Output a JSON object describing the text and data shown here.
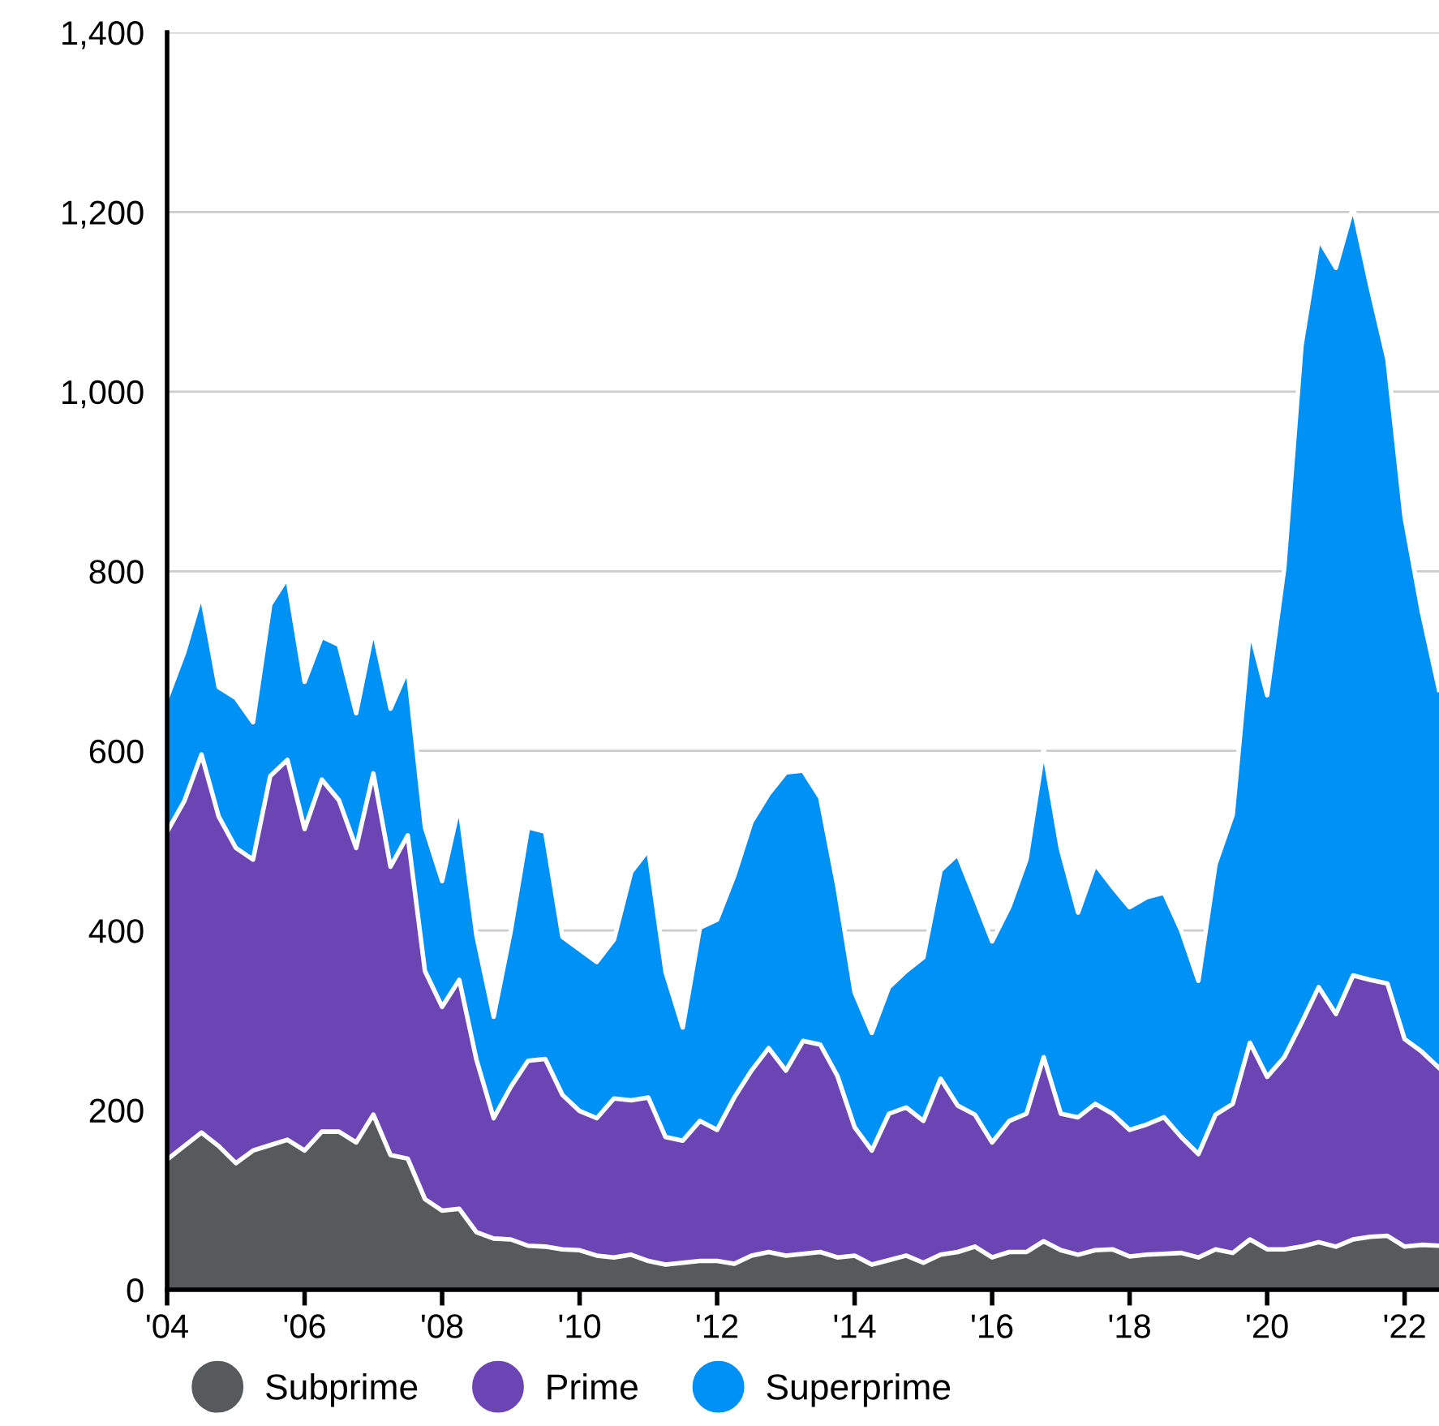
{
  "chart_data": {
    "type": "area",
    "stacked": true,
    "x": [
      2004,
      2004.25,
      2004.5,
      2004.75,
      2005,
      2005.25,
      2005.5,
      2005.75,
      2006,
      2006.25,
      2006.5,
      2006.75,
      2007,
      2007.25,
      2007.5,
      2007.75,
      2008,
      2008.25,
      2008.5,
      2008.75,
      2009,
      2009.25,
      2009.5,
      2009.75,
      2010,
      2010.25,
      2010.5,
      2010.75,
      2011,
      2011.25,
      2011.5,
      2011.75,
      2012,
      2012.25,
      2012.5,
      2012.75,
      2013,
      2013.25,
      2013.5,
      2013.75,
      2014,
      2014.25,
      2014.5,
      2014.75,
      2015,
      2015.25,
      2015.5,
      2015.75,
      2016,
      2016.25,
      2016.5,
      2016.75,
      2017,
      2017.25,
      2017.5,
      2017.75,
      2018,
      2018.25,
      2018.5,
      2018.75,
      2019,
      2019.25,
      2019.5,
      2019.75,
      2020,
      2020.25,
      2020.5,
      2020.75,
      2021,
      2021.25,
      2021.5,
      2021.75,
      2022,
      2022.25,
      2022.5
    ],
    "series": [
      {
        "name": "Subprime",
        "color": "#575a5c",
        "values": [
          145,
          160,
          175,
          160,
          141,
          155,
          161,
          167,
          155,
          176,
          176,
          164,
          195,
          150,
          146,
          101,
          88,
          90,
          64,
          57,
          56,
          49,
          48,
          45,
          44,
          38,
          36,
          39,
          32,
          28,
          30,
          32,
          32,
          29,
          38,
          42,
          38,
          40,
          42,
          36,
          38,
          28,
          33,
          38,
          30,
          39,
          42,
          48,
          36,
          42,
          42,
          54,
          44,
          39,
          44,
          45,
          37,
          39,
          40,
          41,
          36,
          45,
          41,
          56,
          45,
          45,
          48,
          53,
          48,
          56,
          59,
          60,
          48,
          50,
          49
        ]
      },
      {
        "name": "Prime",
        "color": "#6c45b5",
        "values": [
          365,
          384,
          421,
          367,
          351,
          324,
          411,
          423,
          358,
          392,
          369,
          328,
          380,
          321,
          360,
          254,
          227,
          255,
          192,
          134,
          170,
          206,
          209,
          172,
          155,
          153,
          177,
          172,
          182,
          142,
          136,
          156,
          146,
          185,
          206,
          227,
          206,
          237,
          231,
          202,
          143,
          127,
          163,
          165,
          158,
          196,
          163,
          147,
          128,
          146,
          154,
          205,
          152,
          153,
          163,
          151,
          141,
          145,
          152,
          129,
          115,
          150,
          166,
          219,
          192,
          214,
          249,
          284,
          259,
          294,
          286,
          281,
          231,
          215,
          198
        ]
      },
      {
        "name": "Superprime",
        "color": "#0091f7",
        "values": [
          149,
          166,
          179,
          144,
          167,
          153,
          191,
          203,
          164,
          159,
          173,
          150,
          161,
          176,
          185,
          160,
          140,
          195,
          138,
          113,
          174,
          260,
          253,
          176,
          180,
          174,
          177,
          254,
          276,
          184,
          126,
          215,
          234,
          247,
          277,
          283,
          332,
          301,
          275,
          211,
          150,
          131,
          141,
          152,
          182,
          232,
          280,
          242,
          224,
          238,
          283,
          343,
          295,
          228,
          267,
          253,
          248,
          253,
          250,
          230,
          193,
          279,
          322,
          460,
          425,
          545,
          754,
          833,
          831,
          856,
          773,
          695,
          581,
          490,
          421
        ]
      }
    ],
    "xlim": [
      2004,
      2022.5
    ],
    "xticks": [
      {
        "value": 2004,
        "label": "'04"
      },
      {
        "value": 2006,
        "label": "'06"
      },
      {
        "value": 2008,
        "label": "'08"
      },
      {
        "value": 2010,
        "label": "'10"
      },
      {
        "value": 2012,
        "label": "'12"
      },
      {
        "value": 2014,
        "label": "'14"
      },
      {
        "value": 2016,
        "label": "'16"
      },
      {
        "value": 2018,
        "label": "'18"
      },
      {
        "value": 2020,
        "label": "'20"
      },
      {
        "value": 2022,
        "label": "'22"
      }
    ],
    "ylim": [
      0,
      1400
    ],
    "yticks": [
      0,
      200,
      400,
      600,
      800,
      {
        "value": 1000,
        "label": "1,000"
      },
      {
        "value": 1200,
        "label": "1,200"
      },
      {
        "value": 1400,
        "label": "1,400"
      }
    ],
    "grid": "y",
    "legend": "bottom"
  }
}
